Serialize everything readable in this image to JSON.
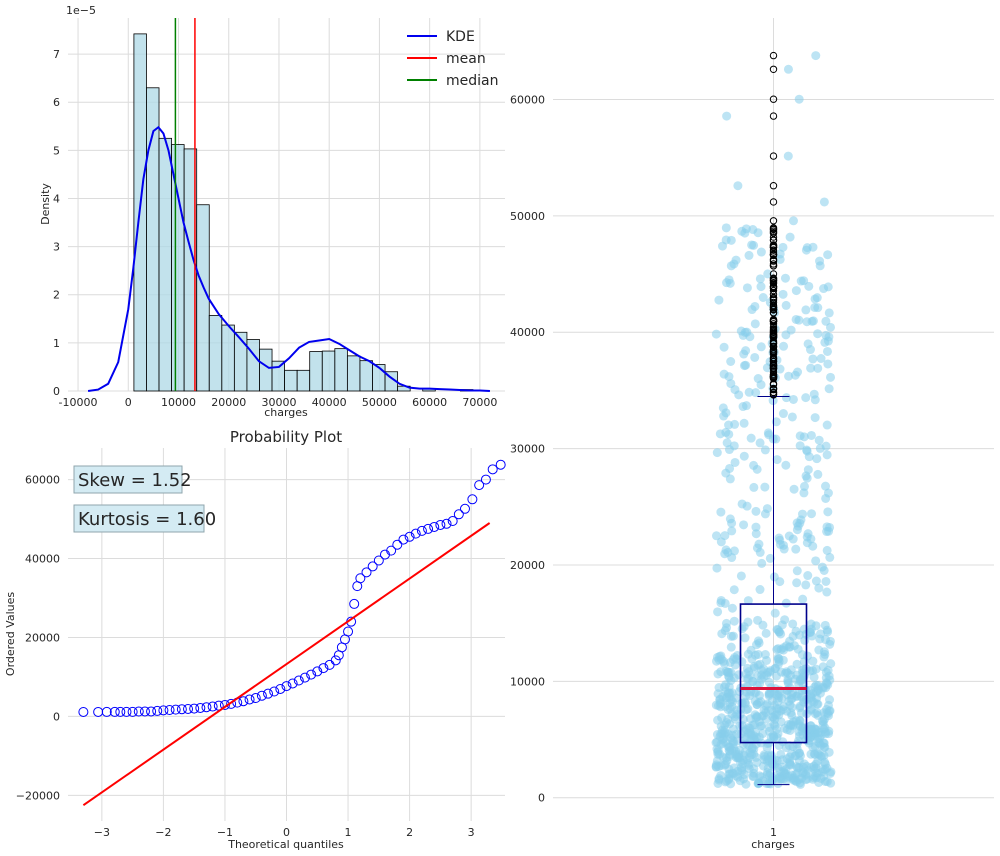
{
  "chart_data": [
    {
      "type": "histogram",
      "xlabel": "charges",
      "ylabel": "Density",
      "y_multiplier": "1e−5",
      "xlim": [
        -12000,
        75000
      ],
      "ylim": [
        0,
        7.75
      ],
      "xticks": [
        "-10000",
        "0",
        "10000",
        "20000",
        "30000",
        "40000",
        "50000",
        "60000",
        "70000"
      ],
      "xtick_values": [
        -10000,
        0,
        10000,
        20000,
        30000,
        40000,
        50000,
        60000,
        70000
      ],
      "yticks": [
        "0",
        "1",
        "2",
        "3",
        "4",
        "5",
        "6",
        "7"
      ],
      "ytick_values": [
        0,
        1,
        2,
        3,
        4,
        5,
        6,
        7
      ],
      "bin_start": 1121,
      "bin_width": 2500,
      "bin_heights": [
        7.42,
        6.3,
        5.25,
        5.12,
        5.03,
        3.87,
        1.57,
        1.37,
        1.22,
        1.07,
        0.87,
        0.62,
        0.43,
        0.43,
        0.82,
        0.83,
        0.88,
        0.73,
        0.63,
        0.55,
        0.4,
        0.1,
        0,
        0.05,
        0,
        0,
        0.03
      ],
      "kde_x": [
        -8000,
        -6000,
        -4000,
        -2000,
        0,
        1000,
        2000,
        3000,
        4000,
        5000,
        6000,
        7000,
        8000,
        9000,
        10000,
        11000,
        12000,
        13000,
        14000,
        15000,
        16000,
        18000,
        20000,
        22000,
        24000,
        26000,
        28000,
        30000,
        32000,
        34000,
        36000,
        38000,
        40000,
        42000,
        44000,
        46000,
        48000,
        50000,
        52000,
        54000,
        56000,
        58000,
        60000,
        62000,
        64000,
        66000,
        68000,
        70000,
        72000
      ],
      "kde_y": [
        0,
        0.03,
        0.15,
        0.6,
        1.7,
        2.55,
        3.5,
        4.4,
        5.0,
        5.4,
        5.48,
        5.35,
        5.0,
        4.5,
        4.0,
        3.5,
        3.1,
        2.72,
        2.4,
        2.15,
        1.92,
        1.6,
        1.35,
        1.12,
        0.88,
        0.62,
        0.48,
        0.5,
        0.68,
        0.9,
        1.02,
        1.05,
        1.08,
        0.98,
        0.85,
        0.72,
        0.62,
        0.48,
        0.3,
        0.15,
        0.07,
        0.05,
        0.05,
        0.04,
        0.03,
        0.02,
        0.01,
        0.01,
        0
      ],
      "mean": 13270,
      "median": 9382,
      "legend": [
        "KDE",
        "mean",
        "median"
      ],
      "legend_loc": "upper right",
      "colors": {
        "bars": "#add8e6",
        "kde": "#0000ee",
        "mean": "#ff0000",
        "median": "#008000"
      },
      "grid": true
    },
    {
      "type": "scatter",
      "title": "Probability Plot",
      "xlabel": "Theoretical quantiles",
      "ylabel": "Ordered Values",
      "xlim": [
        -3.55,
        3.55
      ],
      "ylim": [
        -26500,
        68000
      ],
      "xticks": [
        "−3",
        "−2",
        "−1",
        "0",
        "1",
        "2",
        "3"
      ],
      "xtick_values": [
        -3,
        -2,
        -1,
        0,
        1,
        2,
        3
      ],
      "yticks": [
        "−20000",
        "0",
        "20000",
        "40000",
        "60000"
      ],
      "ytick_values": [
        -20000,
        0,
        20000,
        40000,
        60000
      ],
      "fit_line": {
        "x": [
          -3.3,
          3.3
        ],
        "y": [
          -22500,
          49000
        ]
      },
      "quantile_points": [
        [
          -3.3,
          1122
        ],
        [
          -3.06,
          1131
        ],
        [
          -2.92,
          1136
        ],
        [
          -2.79,
          1137
        ],
        [
          -2.7,
          1141
        ],
        [
          -2.6,
          1146
        ],
        [
          -2.5,
          1148
        ],
        [
          -2.4,
          1241
        ],
        [
          -2.3,
          1253
        ],
        [
          -2.2,
          1253
        ],
        [
          -2.1,
          1391
        ],
        [
          -2.0,
          1532
        ],
        [
          -1.9,
          1625
        ],
        [
          -1.8,
          1720
        ],
        [
          -1.7,
          1824
        ],
        [
          -1.6,
          1880
        ],
        [
          -1.5,
          1984
        ],
        [
          -1.4,
          2138
        ],
        [
          -1.3,
          2331
        ],
        [
          -1.2,
          2498
        ],
        [
          -1.1,
          2719
        ],
        [
          -1.0,
          2902
        ],
        [
          -0.9,
          3176
        ],
        [
          -0.8,
          3490
        ],
        [
          -0.7,
          3847
        ],
        [
          -0.6,
          4296
        ],
        [
          -0.5,
          4661
        ],
        [
          -0.4,
          5245
        ],
        [
          -0.3,
          5757
        ],
        [
          -0.2,
          6313
        ],
        [
          -0.1,
          6948
        ],
        [
          0.0,
          7680
        ],
        [
          0.1,
          8340
        ],
        [
          0.2,
          9090
        ],
        [
          0.3,
          9830
        ],
        [
          0.4,
          10600
        ],
        [
          0.5,
          11400
        ],
        [
          0.6,
          12240
        ],
        [
          0.7,
          13050
        ],
        [
          0.8,
          14200
        ],
        [
          0.85,
          15500
        ],
        [
          0.9,
          17500
        ],
        [
          0.95,
          19500
        ],
        [
          1.0,
          21500
        ],
        [
          1.05,
          24000
        ],
        [
          1.1,
          28500
        ],
        [
          1.15,
          33000
        ],
        [
          1.2,
          35000
        ],
        [
          1.3,
          36500
        ],
        [
          1.4,
          38000
        ],
        [
          1.5,
          39500
        ],
        [
          1.6,
          41000
        ],
        [
          1.7,
          42000
        ],
        [
          1.8,
          43500
        ],
        [
          1.9,
          44800
        ],
        [
          2.0,
          45500
        ],
        [
          2.1,
          46300
        ],
        [
          2.2,
          47000
        ],
        [
          2.3,
          47500
        ],
        [
          2.4,
          48000
        ],
        [
          2.5,
          48500
        ],
        [
          2.6,
          48800
        ],
        [
          2.7,
          49500
        ],
        [
          2.8,
          51200
        ],
        [
          2.9,
          52600
        ],
        [
          3.02,
          55000
        ],
        [
          3.13,
          58600
        ],
        [
          3.24,
          60000
        ],
        [
          3.35,
          62600
        ],
        [
          3.48,
          63770
        ]
      ],
      "annotations": [
        "Skew = 1.52",
        "Kurtosis = 1.60"
      ],
      "colors": {
        "points": "#0000ff",
        "line": "#ff0000",
        "annotation_bg": "#add8e6"
      },
      "grid": true
    },
    {
      "type": "box",
      "xlabel": "charges",
      "xticks": [
        "1"
      ],
      "xlim": [
        0.5,
        1.5
      ],
      "ylim": [
        -2000,
        67000
      ],
      "yticks": [
        "0",
        "10000",
        "20000",
        "30000",
        "40000",
        "50000",
        "60000"
      ],
      "ytick_values": [
        0,
        10000,
        20000,
        30000,
        40000,
        50000,
        60000
      ],
      "stats": {
        "whislo": 1122,
        "q1": 4740,
        "median": 9382,
        "q3": 16640,
        "whishi": 34472
      },
      "fliers": [
        34617,
        34672,
        34806,
        34838,
        35069,
        35147,
        35160,
        35491,
        35585,
        36021,
        36085,
        36125,
        36189,
        36197,
        36219,
        36307,
        36397,
        36580,
        36837,
        36898,
        36910,
        36950,
        37079,
        37133,
        37165,
        37270,
        37465,
        37484,
        37607,
        37701,
        37742,
        37829,
        38126,
        38245,
        38282,
        38344,
        38415,
        38511,
        38709,
        38746,
        38792,
        38998,
        39047,
        39125,
        39241,
        39556,
        39597,
        39611,
        39725,
        39727,
        39774,
        39837,
        39871,
        39983,
        40003,
        40103,
        40182,
        40273,
        40419,
        40720,
        40904,
        40932,
        40941,
        40974,
        41034,
        41097,
        41661,
        41676,
        41919,
        41949,
        41999,
        42112,
        42124,
        42211,
        42303,
        42560,
        42760,
        42856,
        42969,
        42983,
        43254,
        43578,
        43753,
        43813,
        43896,
        43921,
        43943,
        44202,
        44260,
        44400,
        44423,
        44501,
        44585,
        44641,
        45008,
        45702,
        45710,
        45863,
        46113,
        46200,
        46255,
        46599,
        46661,
        46719,
        46889,
        47055,
        47269,
        47291,
        47305,
        47403,
        47462,
        47497,
        47896,
        47928,
        48173,
        48517,
        48549,
        48675,
        48824,
        48885,
        48970,
        49577,
        51194,
        52590,
        55135,
        58571,
        60021,
        62593,
        63770
      ],
      "colors": {
        "jitter": "#87ceeb",
        "box": "#00008b",
        "median": "#dc143c",
        "flier": "#000000"
      },
      "grid": true
    }
  ]
}
